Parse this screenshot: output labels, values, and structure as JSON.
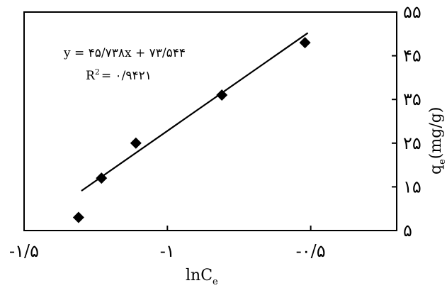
{
  "chart_data": {
    "type": "scatter",
    "xlabel": "lnC",
    "xlabel_sub": "e",
    "ylabel": "q",
    "ylabel_sub": "e",
    "ylabel_unit": "(mg/g)",
    "xlim": [
      -1.5,
      -0.2
    ],
    "ylim": [
      5,
      55
    ],
    "x_ticks": [
      -1.5,
      -1,
      -0.5
    ],
    "x_tick_labels": [
      "-۱/۵",
      "-۱",
      "-۰/۵"
    ],
    "y_ticks": [
      5,
      15,
      25,
      35,
      45,
      55
    ],
    "y_tick_labels": [
      "۵",
      "۱۵",
      "۲۵",
      "۳۵",
      "۴۵",
      "۵۵"
    ],
    "grid": false,
    "points": [
      {
        "x": -1.31,
        "y": 8.0
      },
      {
        "x": -1.23,
        "y": 17.0
      },
      {
        "x": -1.11,
        "y": 25.0
      },
      {
        "x": -0.81,
        "y": 36.0
      },
      {
        "x": -0.52,
        "y": 48.0
      }
    ],
    "fit_line": {
      "slope": 45.738,
      "intercept": 73.544,
      "x_from": -1.3,
      "x_to": -0.51
    },
    "annotations": {
      "equation": "y = ۴۵/۷۳۸x + ۷۳/۵۴۴",
      "r2_label": "R",
      "r2_sup": "2",
      "r2_value": "= ۰/۹۴۲۱"
    }
  }
}
